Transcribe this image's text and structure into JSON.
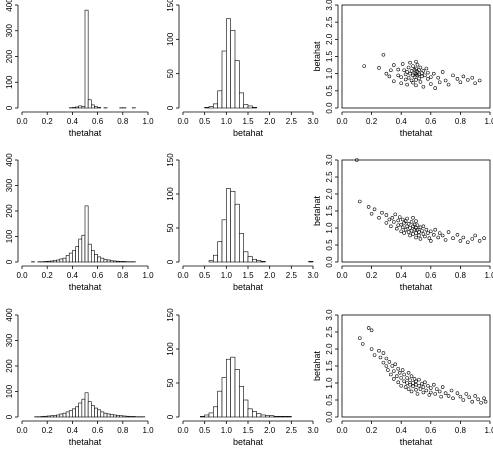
{
  "chart_data": [
    {
      "id": "r1c1",
      "type": "bar",
      "xlabel": "thetahat",
      "ylabel": "",
      "xlim": [
        0,
        1
      ],
      "ylim": [
        0,
        400
      ],
      "xticks": [
        "0.0",
        "0.2",
        "0.4",
        "0.6",
        "0.8",
        "1.0"
      ],
      "yticks": [
        "0",
        "100",
        "200",
        "300",
        "400"
      ],
      "bins": {
        "start": 0.0,
        "width": 0.025
      },
      "values": [
        0,
        0,
        0,
        0,
        0,
        0,
        0,
        0,
        0,
        0,
        0,
        0,
        0,
        0,
        0,
        1,
        2,
        4,
        8,
        5,
        380,
        32,
        12,
        5,
        2,
        0,
        1,
        0,
        0,
        0,
        0,
        1,
        1,
        0,
        0,
        1,
        0,
        0,
        0,
        0
      ]
    },
    {
      "id": "r1c2",
      "type": "bar",
      "xlabel": "betahat",
      "ylabel": "",
      "xlim": [
        0,
        3
      ],
      "ylim": [
        0,
        150
      ],
      "xticks": [
        "0.0",
        "0.5",
        "1.0",
        "1.5",
        "2.0",
        "2.5",
        "3.0"
      ],
      "yticks": [
        "0",
        "50",
        "100",
        "150"
      ],
      "bins": {
        "start": 0.0,
        "width": 0.1
      },
      "values": [
        0,
        0,
        0,
        0,
        0,
        1,
        2,
        6,
        25,
        83,
        130,
        113,
        69,
        22,
        5,
        3,
        1,
        0,
        0,
        0,
        0,
        0,
        0,
        0,
        0,
        0,
        0,
        0,
        0,
        0
      ]
    },
    {
      "id": "r1c3",
      "type": "scatter",
      "xlabel": "thetahat",
      "ylabel": "betahat",
      "xlim": [
        0,
        1
      ],
      "ylim": [
        0,
        3
      ],
      "xticks": [
        "0.0",
        "0.2",
        "0.4",
        "0.6",
        "0.8",
        "1.0"
      ],
      "yticks": [
        "0.0",
        "0.5",
        "1.0",
        "1.5",
        "2.0",
        "2.5",
        "3.0"
      ],
      "points": [
        [
          0.15,
          1.22
        ],
        [
          0.25,
          1.17
        ],
        [
          0.28,
          1.55
        ],
        [
          0.3,
          1.0
        ],
        [
          0.32,
          0.92
        ],
        [
          0.33,
          1.1
        ],
        [
          0.35,
          1.25
        ],
        [
          0.35,
          0.78
        ],
        [
          0.38,
          0.95
        ],
        [
          0.38,
          1.12
        ],
        [
          0.4,
          0.9
        ],
        [
          0.4,
          0.72
        ],
        [
          0.41,
          1.28
        ],
        [
          0.42,
          1.1
        ],
        [
          0.43,
          0.98
        ],
        [
          0.43,
          0.83
        ],
        [
          0.44,
          1.05
        ],
        [
          0.44,
          0.68
        ],
        [
          0.45,
          1.18
        ],
        [
          0.45,
          0.88
        ],
        [
          0.46,
          1.0
        ],
        [
          0.46,
          1.32
        ],
        [
          0.47,
          0.8
        ],
        [
          0.47,
          1.08
        ],
        [
          0.48,
          0.95
        ],
        [
          0.48,
          1.22
        ],
        [
          0.48,
          0.74
        ],
        [
          0.49,
          1.02
        ],
        [
          0.49,
          0.9
        ],
        [
          0.49,
          1.12
        ],
        [
          0.5,
          1.0
        ],
        [
          0.5,
          1.35
        ],
        [
          0.5,
          0.82
        ],
        [
          0.5,
          0.66
        ],
        [
          0.5,
          1.15
        ],
        [
          0.51,
          0.95
        ],
        [
          0.51,
          1.05
        ],
        [
          0.51,
          1.26
        ],
        [
          0.52,
          0.86
        ],
        [
          0.52,
          1.1
        ],
        [
          0.52,
          0.98
        ],
        [
          0.53,
          1.18
        ],
        [
          0.53,
          0.76
        ],
        [
          0.54,
          1.02
        ],
        [
          0.54,
          0.92
        ],
        [
          0.55,
          1.08
        ],
        [
          0.55,
          0.62
        ],
        [
          0.56,
          0.95
        ],
        [
          0.57,
          1.15
        ],
        [
          0.58,
          0.85
        ],
        [
          0.58,
          1.03
        ],
        [
          0.6,
          0.9
        ],
        [
          0.6,
          0.7
        ],
        [
          0.62,
          1.0
        ],
        [
          0.63,
          0.58
        ],
        [
          0.65,
          0.88
        ],
        [
          0.66,
          0.75
        ],
        [
          0.68,
          1.05
        ],
        [
          0.7,
          0.8
        ],
        [
          0.72,
          0.68
        ],
        [
          0.75,
          0.95
        ],
        [
          0.78,
          0.85
        ],
        [
          0.8,
          0.75
        ],
        [
          0.82,
          0.92
        ],
        [
          0.85,
          0.82
        ],
        [
          0.88,
          0.88
        ],
        [
          0.9,
          0.72
        ],
        [
          0.93,
          0.8
        ]
      ]
    },
    {
      "id": "r2c1",
      "type": "bar",
      "xlabel": "thetahat",
      "ylabel": "",
      "xlim": [
        0,
        1
      ],
      "ylim": [
        0,
        400
      ],
      "xticks": [
        "0.0",
        "0.2",
        "0.4",
        "0.6",
        "0.8",
        "1.0"
      ],
      "yticks": [
        "0",
        "100",
        "200",
        "300",
        "400"
      ],
      "bins": {
        "start": 0.0,
        "width": 0.025
      },
      "values": [
        0,
        0,
        0,
        1,
        0,
        1,
        1,
        2,
        3,
        4,
        6,
        8,
        12,
        15,
        25,
        35,
        45,
        60,
        90,
        105,
        220,
        70,
        45,
        30,
        20,
        15,
        10,
        8,
        5,
        4,
        3,
        2,
        2,
        1,
        1,
        1,
        0,
        0,
        0,
        0
      ]
    },
    {
      "id": "r2c2",
      "type": "bar",
      "xlabel": "betahat",
      "ylabel": "",
      "xlim": [
        0,
        3
      ],
      "ylim": [
        0,
        150
      ],
      "xticks": [
        "0.0",
        "0.5",
        "1.0",
        "1.5",
        "2.0",
        "2.5",
        "3.0"
      ],
      "yticks": [
        "0",
        "50",
        "100",
        "150"
      ],
      "bins": {
        "start": 0.0,
        "width": 0.1
      },
      "values": [
        0,
        0,
        0,
        0,
        0,
        0,
        2,
        10,
        30,
        62,
        108,
        104,
        85,
        42,
        15,
        8,
        4,
        2,
        1,
        0,
        0,
        0,
        0,
        0,
        0,
        0,
        0,
        0,
        0,
        1
      ]
    },
    {
      "id": "r2c3",
      "type": "scatter",
      "xlabel": "thetahat",
      "ylabel": "betahat",
      "xlim": [
        0,
        1
      ],
      "ylim": [
        0,
        3
      ],
      "xticks": [
        "0.0",
        "0.2",
        "0.4",
        "0.6",
        "0.8",
        "1.0"
      ],
      "yticks": [
        "0.0",
        "0.5",
        "1.0",
        "1.5",
        "2.0",
        "2.5",
        "3.0"
      ],
      "points": [
        [
          0.1,
          3.0
        ],
        [
          0.12,
          1.78
        ],
        [
          0.18,
          1.62
        ],
        [
          0.2,
          1.42
        ],
        [
          0.22,
          1.55
        ],
        [
          0.25,
          1.3
        ],
        [
          0.27,
          1.45
        ],
        [
          0.3,
          1.15
        ],
        [
          0.3,
          1.38
        ],
        [
          0.32,
          1.25
        ],
        [
          0.33,
          1.05
        ],
        [
          0.34,
          1.3
        ],
        [
          0.35,
          1.18
        ],
        [
          0.36,
          1.4
        ],
        [
          0.37,
          0.98
        ],
        [
          0.38,
          1.22
        ],
        [
          0.38,
          1.08
        ],
        [
          0.39,
          1.32
        ],
        [
          0.4,
          1.1
        ],
        [
          0.4,
          0.9
        ],
        [
          0.41,
          1.25
        ],
        [
          0.41,
          1.02
        ],
        [
          0.42,
          1.15
        ],
        [
          0.42,
          0.85
        ],
        [
          0.43,
          1.2
        ],
        [
          0.43,
          0.95
        ],
        [
          0.44,
          1.05
        ],
        [
          0.44,
          1.28
        ],
        [
          0.45,
          0.88
        ],
        [
          0.45,
          1.12
        ],
        [
          0.46,
          1.0
        ],
        [
          0.46,
          0.78
        ],
        [
          0.47,
          1.18
        ],
        [
          0.47,
          0.92
        ],
        [
          0.48,
          1.05
        ],
        [
          0.48,
          0.82
        ],
        [
          0.48,
          1.3
        ],
        [
          0.49,
          0.95
        ],
        [
          0.49,
          1.1
        ],
        [
          0.5,
          1.0
        ],
        [
          0.5,
          0.85
        ],
        [
          0.5,
          1.2
        ],
        [
          0.5,
          0.72
        ],
        [
          0.51,
          0.95
        ],
        [
          0.51,
          1.08
        ],
        [
          0.52,
          0.88
        ],
        [
          0.52,
          0.78
        ],
        [
          0.53,
          1.02
        ],
        [
          0.53,
          0.68
        ],
        [
          0.54,
          0.92
        ],
        [
          0.55,
          0.82
        ],
        [
          0.55,
          1.05
        ],
        [
          0.56,
          0.75
        ],
        [
          0.57,
          0.95
        ],
        [
          0.58,
          0.85
        ],
        [
          0.59,
          0.7
        ],
        [
          0.6,
          0.9
        ],
        [
          0.6,
          0.62
        ],
        [
          0.62,
          0.8
        ],
        [
          0.63,
          0.95
        ],
        [
          0.65,
          0.72
        ],
        [
          0.66,
          0.85
        ],
        [
          0.68,
          0.78
        ],
        [
          0.7,
          0.65
        ],
        [
          0.72,
          0.88
        ],
        [
          0.75,
          0.7
        ],
        [
          0.78,
          0.8
        ],
        [
          0.8,
          0.62
        ],
        [
          0.82,
          0.72
        ],
        [
          0.85,
          0.58
        ],
        [
          0.88,
          0.68
        ],
        [
          0.9,
          0.78
        ],
        [
          0.93,
          0.62
        ],
        [
          0.96,
          0.7
        ]
      ]
    },
    {
      "id": "r3c1",
      "type": "bar",
      "xlabel": "thetahat",
      "ylabel": "",
      "xlim": [
        0,
        1
      ],
      "ylim": [
        0,
        400
      ],
      "xticks": [
        "0.0",
        "0.2",
        "0.4",
        "0.6",
        "0.8",
        "1.0"
      ],
      "yticks": [
        "0",
        "100",
        "200",
        "300",
        "400"
      ],
      "bins": {
        "start": 0.0,
        "width": 0.025
      },
      "values": [
        0,
        0,
        0,
        0,
        1,
        1,
        2,
        3,
        4,
        5,
        6,
        8,
        12,
        15,
        20,
        25,
        32,
        40,
        55,
        70,
        95,
        60,
        45,
        35,
        28,
        20,
        15,
        12,
        10,
        8,
        6,
        5,
        4,
        3,
        2,
        2,
        1,
        1,
        1,
        0
      ]
    },
    {
      "id": "r3c2",
      "type": "bar",
      "xlabel": "betahat",
      "ylabel": "",
      "xlim": [
        0,
        3
      ],
      "ylim": [
        0,
        150
      ],
      "xticks": [
        "0.0",
        "0.5",
        "1.0",
        "1.5",
        "2.0",
        "2.5",
        "3.0"
      ],
      "yticks": [
        "0",
        "50",
        "100",
        "150"
      ],
      "bins": {
        "start": 0.0,
        "width": 0.1
      },
      "values": [
        0,
        0,
        0,
        0,
        1,
        3,
        6,
        15,
        38,
        58,
        85,
        88,
        70,
        45,
        25,
        12,
        8,
        5,
        3,
        2,
        2,
        1,
        1,
        1,
        1,
        0,
        0,
        0,
        0,
        0
      ]
    },
    {
      "id": "r3c3",
      "type": "scatter",
      "xlabel": "thetahat",
      "ylabel": "betahat",
      "xlim": [
        0,
        1
      ],
      "ylim": [
        0,
        3
      ],
      "xticks": [
        "0.0",
        "0.2",
        "0.4",
        "0.6",
        "0.8",
        "1.0"
      ],
      "yticks": [
        "0.0",
        "0.5",
        "1.0",
        "1.5",
        "2.0",
        "2.5",
        "3.0"
      ],
      "points": [
        [
          0.12,
          2.32
        ],
        [
          0.14,
          2.15
        ],
        [
          0.18,
          2.62
        ],
        [
          0.2,
          2.55
        ],
        [
          0.22,
          1.82
        ],
        [
          0.2,
          2.0
        ],
        [
          0.25,
          1.95
        ],
        [
          0.26,
          1.75
        ],
        [
          0.28,
          1.6
        ],
        [
          0.28,
          1.88
        ],
        [
          0.3,
          1.5
        ],
        [
          0.3,
          1.72
        ],
        [
          0.31,
          1.38
        ],
        [
          0.32,
          1.62
        ],
        [
          0.33,
          1.25
        ],
        [
          0.34,
          1.5
        ],
        [
          0.35,
          1.35
        ],
        [
          0.35,
          1.12
        ],
        [
          0.36,
          1.55
        ],
        [
          0.37,
          1.2
        ],
        [
          0.38,
          1.42
        ],
        [
          0.38,
          1.02
        ],
        [
          0.39,
          1.3
        ],
        [
          0.4,
          1.15
        ],
        [
          0.4,
          0.92
        ],
        [
          0.41,
          1.38
        ],
        [
          0.42,
          1.05
        ],
        [
          0.42,
          1.25
        ],
        [
          0.43,
          0.88
        ],
        [
          0.44,
          1.15
        ],
        [
          0.44,
          1.0
        ],
        [
          0.45,
          1.3
        ],
        [
          0.45,
          0.82
        ],
        [
          0.46,
          1.08
        ],
        [
          0.46,
          0.95
        ],
        [
          0.47,
          1.2
        ],
        [
          0.47,
          0.75
        ],
        [
          0.48,
          1.0
        ],
        [
          0.48,
          0.9
        ],
        [
          0.49,
          1.12
        ],
        [
          0.5,
          0.95
        ],
        [
          0.5,
          0.8
        ],
        [
          0.5,
          1.05
        ],
        [
          0.51,
          0.68
        ],
        [
          0.52,
          0.92
        ],
        [
          0.52,
          1.1
        ],
        [
          0.53,
          0.82
        ],
        [
          0.54,
          0.98
        ],
        [
          0.55,
          0.72
        ],
        [
          0.55,
          0.88
        ],
        [
          0.56,
          1.02
        ],
        [
          0.57,
          0.78
        ],
        [
          0.58,
          0.92
        ],
        [
          0.59,
          0.65
        ],
        [
          0.6,
          0.85
        ],
        [
          0.6,
          0.72
        ],
        [
          0.62,
          0.95
        ],
        [
          0.63,
          0.68
        ],
        [
          0.64,
          0.82
        ],
        [
          0.66,
          0.75
        ],
        [
          0.67,
          0.6
        ],
        [
          0.68,
          0.88
        ],
        [
          0.7,
          0.7
        ],
        [
          0.72,
          0.62
        ],
        [
          0.74,
          0.78
        ],
        [
          0.75,
          0.55
        ],
        [
          0.78,
          0.7
        ],
        [
          0.8,
          0.6
        ],
        [
          0.82,
          0.5
        ],
        [
          0.84,
          0.68
        ],
        [
          0.86,
          0.58
        ],
        [
          0.88,
          0.45
        ],
        [
          0.9,
          0.62
        ],
        [
          0.92,
          0.52
        ],
        [
          0.94,
          0.42
        ],
        [
          0.96,
          0.55
        ],
        [
          0.97,
          0.45
        ]
      ]
    }
  ]
}
